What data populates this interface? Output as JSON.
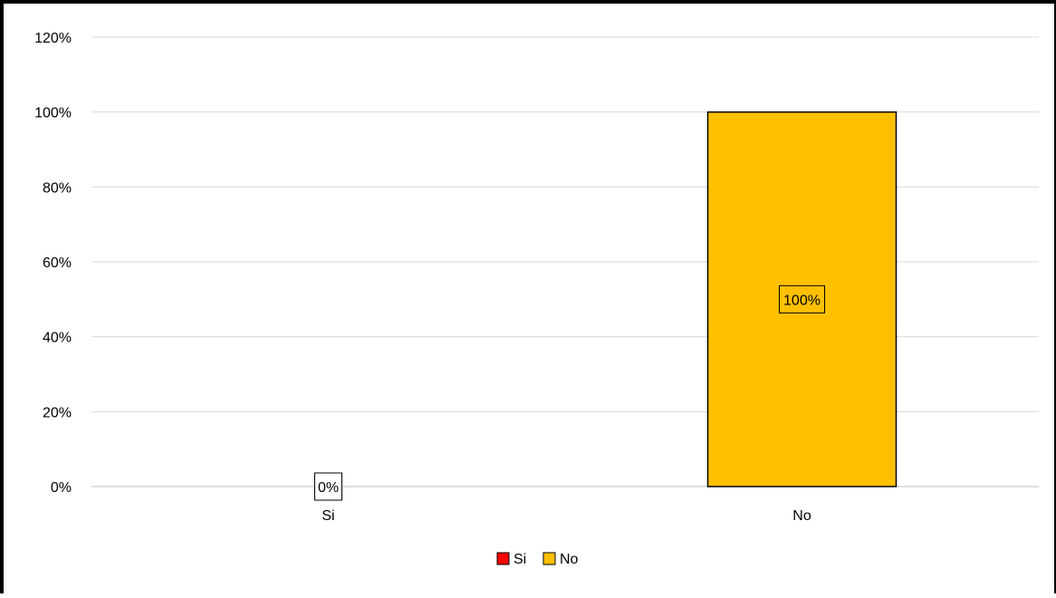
{
  "chart_data": {
    "type": "bar",
    "categories": [
      "Si",
      "No"
    ],
    "values": [
      0,
      100
    ],
    "value_labels": [
      "0%",
      "100%"
    ],
    "colors": [
      "#FF0000",
      "#FFC000"
    ],
    "ylim": [
      0,
      120
    ],
    "y_ticks": [
      0,
      20,
      40,
      60,
      80,
      100,
      120
    ],
    "y_tick_labels": [
      "0%",
      "20%",
      "40%",
      "60%",
      "80%",
      "100%",
      "120%"
    ],
    "grid": true,
    "legend": {
      "placement": "bottom",
      "entries": [
        {
          "label": "Si",
          "color": "#FF0000"
        },
        {
          "label": "No",
          "color": "#FFC000"
        }
      ]
    }
  }
}
